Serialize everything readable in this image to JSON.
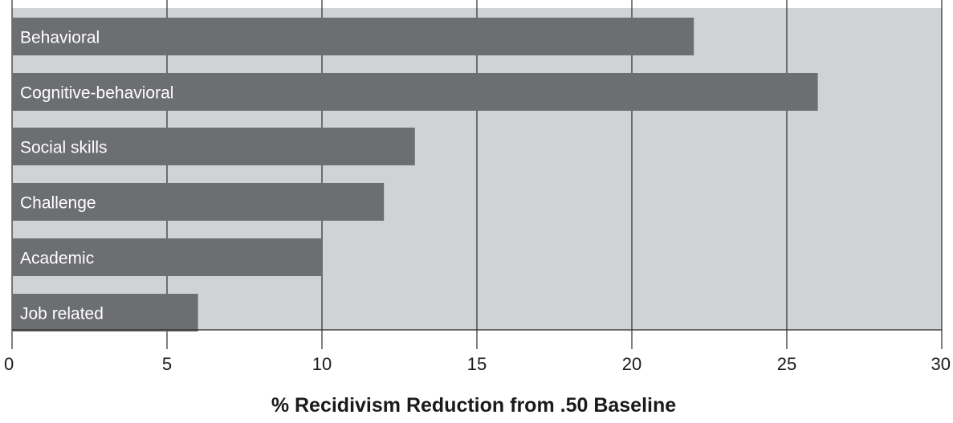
{
  "chart_data": {
    "type": "bar",
    "orientation": "horizontal",
    "categories": [
      "Behavioral",
      "Cognitive-behavioral",
      "Social skills",
      "Challenge",
      "Academic",
      "Job related"
    ],
    "values": [
      22,
      26,
      13,
      12,
      10,
      6
    ],
    "title": "",
    "xlabel": "% Recidivism Reduction from .50 Baseline",
    "ylabel": "",
    "xlim": [
      0,
      30
    ],
    "xticks": [
      "0",
      "5",
      "10",
      "15",
      "20",
      "25",
      "30"
    ],
    "grid": "vertical",
    "legend": "none",
    "colors": {
      "bar": "#6d6e71",
      "plot_background": "#d1d2d4",
      "gridline": "#2b2b2b",
      "bar_label": "#ffffff",
      "text": "#1a1a1a"
    }
  }
}
